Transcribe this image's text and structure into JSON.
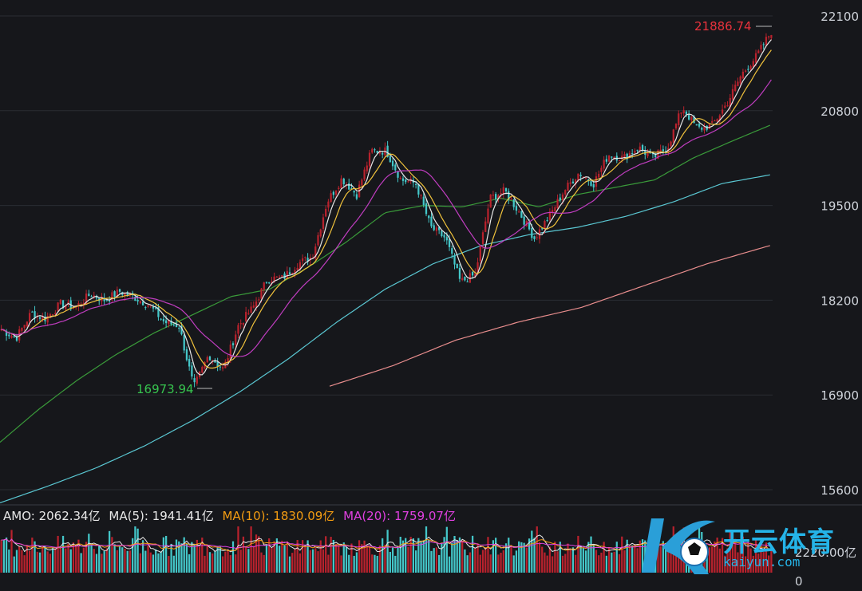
{
  "colors": {
    "background": "#16171b",
    "grid": "#2a2d33",
    "up": "#b8222d",
    "down": "#44c7c9",
    "ma5": "#e8e8e8",
    "ma10": "#f0c23c",
    "ma20": "#c03dc0",
    "ma60": "#3a9b3a",
    "ma120": "#5ac7d2",
    "ma250": "#e88d8d",
    "high_label": "#e8323c",
    "low_label": "#37c44f",
    "amo_label": "#e8e8e8",
    "amo_ma5": "#e8e8e8",
    "amo_ma10": "#f39c12",
    "amo_ma20": "#e040e0"
  },
  "chart_data": {
    "type": "candlestick",
    "y_ticks": [
      "22100",
      "20800",
      "19500",
      "18200",
      "16900",
      "15600"
    ],
    "ylim": [
      15350,
      22300
    ],
    "high_annotation": "21886.74",
    "low_annotation": "16973.94",
    "anchors": {
      "price": [
        17800,
        17680,
        18020,
        17950,
        18150,
        18100,
        18280,
        18200,
        18320,
        18240,
        18130,
        17900,
        17850,
        17000,
        17450,
        17250,
        17850,
        18100,
        18500,
        18500,
        18700,
        18800,
        19550,
        19870,
        19650,
        20250,
        20250,
        19850,
        19800,
        19200,
        19050,
        18450,
        18550,
        19600,
        19700,
        19400,
        19050,
        19350,
        19700,
        19950,
        19800,
        20200,
        20150,
        20300,
        20150,
        20300,
        20850,
        20550,
        20600,
        20900,
        21300,
        21550,
        21886.74
      ],
      "ma60": [
        16250,
        16700,
        17100,
        17450,
        17750,
        18000,
        18250,
        18350,
        18650,
        19000,
        19400,
        19500,
        19480,
        19600,
        19480,
        19650,
        19750,
        19850,
        20150,
        20380,
        20600
      ],
      "ma120": [
        15420,
        15650,
        15900,
        16200,
        16550,
        16950,
        17400,
        17900,
        18350,
        18700,
        18950,
        19100,
        19200,
        19350,
        19550,
        19800,
        19920
      ],
      "ma250": [
        17020,
        17300,
        17650,
        17900,
        18100,
        18400,
        18700,
        18950
      ]
    },
    "amo": {
      "label": "AMO: 2062.34亿",
      "ma5": "MA(5): 1941.41亿",
      "ma10": "MA(10): 1830.09亿",
      "ma20": "MA(20): 1759.07亿",
      "scale_max": "2220.00亿",
      "scale_min": "0"
    }
  },
  "watermark": {
    "brand": "开云体育",
    "url": "kaiyun.com"
  }
}
